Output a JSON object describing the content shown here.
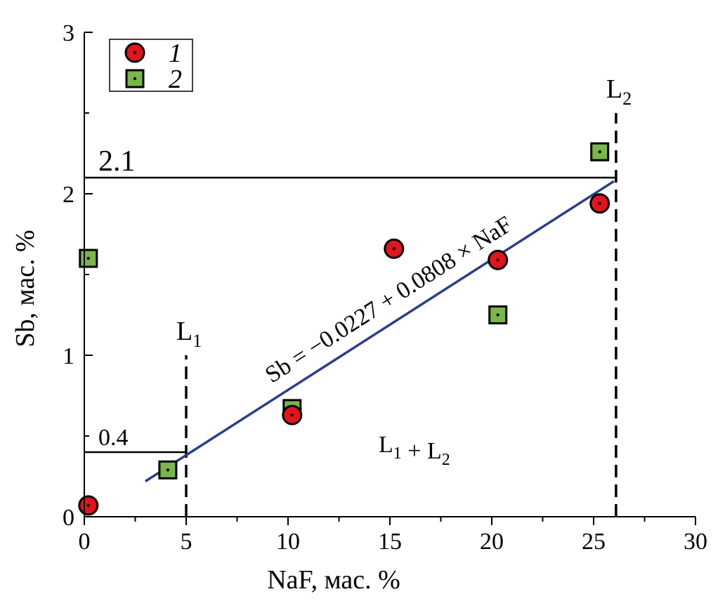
{
  "chart_data": {
    "type": "scatter",
    "xlabel": "NaF, мас. %",
    "ylabel": "Sb, мас. %",
    "xlim": [
      0,
      30
    ],
    "ylim": [
      0,
      3
    ],
    "x_ticks": [
      "0",
      "5",
      "10",
      "15",
      "20",
      "25",
      "30"
    ],
    "y_ticks": [
      "0",
      "1",
      "2",
      "3"
    ],
    "legend_position": "top-left",
    "series": [
      {
        "name": "1",
        "marker": "circle",
        "color": "#e3141c",
        "points": [
          {
            "x": 0.2,
            "y": 0.07
          },
          {
            "x": 10.2,
            "y": 0.63
          },
          {
            "x": 15.2,
            "y": 1.66
          },
          {
            "x": 20.3,
            "y": 1.59
          },
          {
            "x": 25.3,
            "y": 1.94
          }
        ]
      },
      {
        "name": "2",
        "marker": "square",
        "color": "#7ab648",
        "points": [
          {
            "x": 0.2,
            "y": 1.6
          },
          {
            "x": 4.1,
            "y": 0.29
          },
          {
            "x": 10.2,
            "y": 0.67
          },
          {
            "x": 20.3,
            "y": 1.25
          },
          {
            "x": 25.3,
            "y": 2.26
          }
        ]
      }
    ],
    "fit_line": {
      "intercept": -0.0227,
      "slope": 0.0808,
      "x_range": [
        3,
        26
      ],
      "color": "#2b3d8f",
      "label_main": "Sb = −0.0227 + 0.0808 × NaF"
    },
    "reference_lines": {
      "horizontal": [
        {
          "y": 2.1,
          "x_end": 26.1,
          "label": "2.1"
        },
        {
          "y": 0.4,
          "x_end": 5,
          "label": "0.4"
        }
      ],
      "vertical_dashed": [
        {
          "x": 5,
          "y_top": 1.0,
          "label_main": "L",
          "label_sub": "1"
        },
        {
          "x": 26.1,
          "y_top": 2.5,
          "label_main": "L",
          "label_sub": "2"
        }
      ]
    },
    "region_label": {
      "x": 16,
      "y": 0.4,
      "parts": [
        {
          "main": "L",
          "sub": "1"
        },
        {
          "main": " + "
        },
        {
          "main": "L",
          "sub": "2"
        }
      ]
    }
  }
}
